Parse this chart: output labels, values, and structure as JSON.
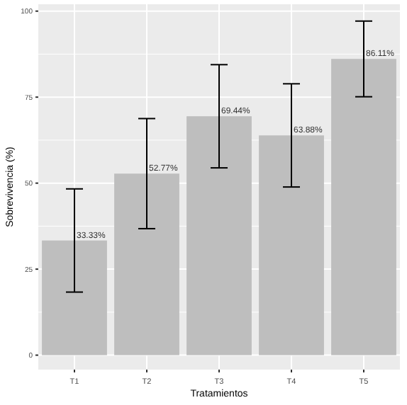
{
  "chart_data": {
    "type": "bar",
    "xlabel": "Tratamientos",
    "ylabel": "Sobrevivencia (%)",
    "categories": [
      "T1",
      "T2",
      "T3",
      "T4",
      "T5"
    ],
    "values": [
      33.33,
      52.77,
      69.44,
      63.88,
      86.11
    ],
    "errors": [
      15,
      16,
      15,
      15,
      11
    ],
    "value_labels": [
      "33.33%",
      "52.77%",
      "69.44%",
      "63.88%",
      "86.11%"
    ],
    "color": "#bebebe",
    "ylim": [
      -4.2,
      102
    ],
    "yticks": [
      0,
      25,
      50,
      75,
      100
    ],
    "grid": true
  }
}
